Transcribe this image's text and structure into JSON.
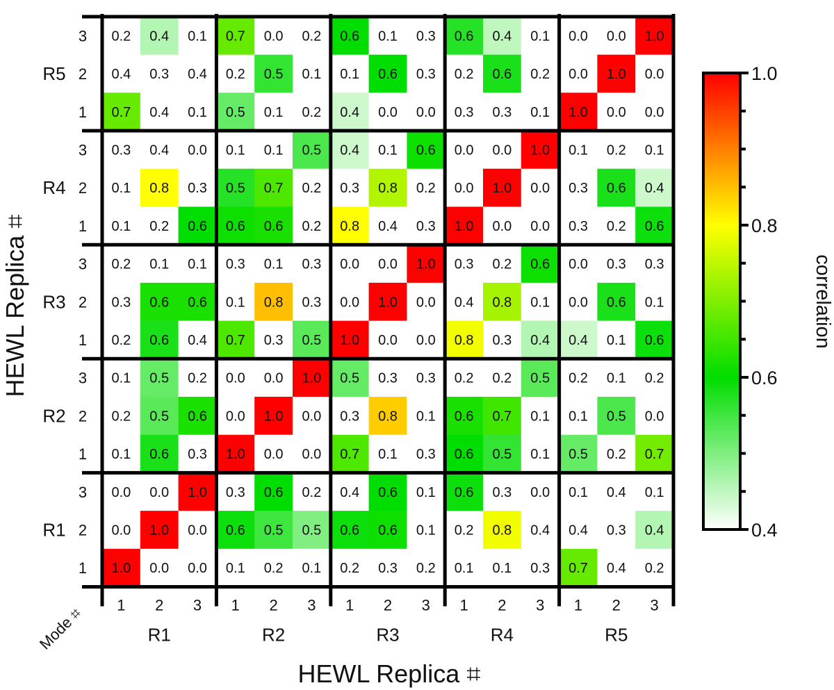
{
  "chart_data": {
    "type": "heatmap",
    "title": "",
    "xlabel": "HEWL Replica ⌗",
    "ylabel": "HEWL Replica ⌗",
    "corner_label": "Mode ⌗",
    "replicas": [
      "R1",
      "R2",
      "R3",
      "R4",
      "R5"
    ],
    "modes": [
      "1",
      "2",
      "3"
    ],
    "colorbar": {
      "label": "correlation",
      "range": [
        0.4,
        1.0
      ],
      "ticks": [
        "0.4",
        "0.6",
        "0.8",
        "1.0"
      ],
      "tick_values": [
        0.4,
        0.6,
        0.8,
        1.0
      ],
      "colors": [
        "#ffffff",
        "#00dd00",
        "#ffff00",
        "#ff0000"
      ]
    },
    "rows_top_to_bottom": [
      {
        "replica": "R5",
        "mode": "3",
        "labels": [
          "0.2",
          "0.4",
          "0.1",
          "0.7",
          "0.0",
          "0.2",
          "0.6",
          "0.1",
          "0.3",
          "0.6",
          "0.4",
          "0.1",
          "0.0",
          "0.0",
          "1.0"
        ]
      },
      {
        "replica": "R5",
        "mode": "2",
        "labels": [
          "0.4",
          "0.3",
          "0.4",
          "0.2",
          "0.5",
          "0.1",
          "0.1",
          "0.6",
          "0.3",
          "0.2",
          "0.6",
          "0.2",
          "0.0",
          "1.0",
          "0.0"
        ]
      },
      {
        "replica": "R5",
        "mode": "1",
        "labels": [
          "0.7",
          "0.4",
          "0.1",
          "0.5",
          "0.1",
          "0.2",
          "0.4",
          "0.0",
          "0.0",
          "0.3",
          "0.3",
          "0.1",
          "1.0",
          "0.0",
          "0.0"
        ]
      },
      {
        "replica": "R4",
        "mode": "3",
        "labels": [
          "0.3",
          "0.4",
          "0.0",
          "0.1",
          "0.1",
          "0.5",
          "0.4",
          "0.1",
          "0.6",
          "0.0",
          "0.0",
          "1.0",
          "0.1",
          "0.2",
          "0.1"
        ]
      },
      {
        "replica": "R4",
        "mode": "2",
        "labels": [
          "0.1",
          "0.8",
          "0.3",
          "0.5",
          "0.7",
          "0.2",
          "0.3",
          "0.8",
          "0.2",
          "0.0",
          "1.0",
          "0.0",
          "0.3",
          "0.6",
          "0.4"
        ]
      },
      {
        "replica": "R4",
        "mode": "1",
        "labels": [
          "0.1",
          "0.2",
          "0.6",
          "0.6",
          "0.6",
          "0.2",
          "0.8",
          "0.4",
          "0.3",
          "1.0",
          "0.0",
          "0.0",
          "0.3",
          "0.2",
          "0.6"
        ]
      },
      {
        "replica": "R3",
        "mode": "3",
        "labels": [
          "0.2",
          "0.1",
          "0.1",
          "0.3",
          "0.1",
          "0.3",
          "0.0",
          "0.0",
          "1.0",
          "0.3",
          "0.2",
          "0.6",
          "0.0",
          "0.3",
          "0.3"
        ]
      },
      {
        "replica": "R3",
        "mode": "2",
        "labels": [
          "0.3",
          "0.6",
          "0.6",
          "0.1",
          "0.8",
          "0.3",
          "0.0",
          "1.0",
          "0.0",
          "0.4",
          "0.8",
          "0.1",
          "0.0",
          "0.6",
          "0.1"
        ]
      },
      {
        "replica": "R3",
        "mode": "1",
        "labels": [
          "0.2",
          "0.6",
          "0.4",
          "0.7",
          "0.3",
          "0.5",
          "1.0",
          "0.0",
          "0.0",
          "0.8",
          "0.3",
          "0.4",
          "0.4",
          "0.1",
          "0.6"
        ]
      },
      {
        "replica": "R2",
        "mode": "3",
        "labels": [
          "0.1",
          "0.5",
          "0.2",
          "0.0",
          "0.0",
          "1.0",
          "0.5",
          "0.3",
          "0.3",
          "0.2",
          "0.2",
          "0.5",
          "0.2",
          "0.1",
          "0.2"
        ]
      },
      {
        "replica": "R2",
        "mode": "2",
        "labels": [
          "0.2",
          "0.5",
          "0.6",
          "0.0",
          "1.0",
          "0.0",
          "0.3",
          "0.8",
          "0.1",
          "0.6",
          "0.7",
          "0.1",
          "0.1",
          "0.5",
          "0.0"
        ]
      },
      {
        "replica": "R2",
        "mode": "1",
        "labels": [
          "0.1",
          "0.6",
          "0.3",
          "1.0",
          "0.0",
          "0.0",
          "0.7",
          "0.1",
          "0.3",
          "0.6",
          "0.5",
          "0.1",
          "0.5",
          "0.2",
          "0.7"
        ]
      },
      {
        "replica": "R1",
        "mode": "3",
        "labels": [
          "0.0",
          "0.0",
          "1.0",
          "0.3",
          "0.6",
          "0.2",
          "0.4",
          "0.6",
          "0.1",
          "0.6",
          "0.3",
          "0.0",
          "0.1",
          "0.4",
          "0.1"
        ]
      },
      {
        "replica": "R1",
        "mode": "2",
        "labels": [
          "0.0",
          "1.0",
          "0.0",
          "0.6",
          "0.5",
          "0.5",
          "0.6",
          "0.6",
          "0.1",
          "0.2",
          "0.8",
          "0.4",
          "0.4",
          "0.3",
          "0.4"
        ]
      },
      {
        "replica": "R1",
        "mode": "1",
        "labels": [
          "1.0",
          "0.0",
          "0.0",
          "0.1",
          "0.2",
          "0.1",
          "0.2",
          "0.3",
          "0.2",
          "0.1",
          "0.1",
          "0.3",
          "0.7",
          "0.4",
          "0.2"
        ]
      }
    ],
    "color_values_top_to_bottom": [
      [
        0.4,
        0.46,
        0.4,
        0.68,
        0.4,
        0.4,
        0.6,
        0.4,
        0.4,
        0.57,
        0.45,
        0.4,
        0.4,
        0.4,
        1.0
      ],
      [
        0.4,
        0.4,
        0.4,
        0.4,
        0.56,
        0.4,
        0.4,
        0.6,
        0.4,
        0.4,
        0.58,
        0.4,
        0.4,
        1.0,
        0.4
      ],
      [
        0.68,
        0.4,
        0.4,
        0.52,
        0.4,
        0.4,
        0.44,
        0.4,
        0.4,
        0.4,
        0.4,
        0.4,
        1.0,
        0.4,
        0.4
      ],
      [
        0.4,
        0.4,
        0.4,
        0.4,
        0.4,
        0.54,
        0.44,
        0.4,
        0.61,
        0.4,
        0.4,
        1.0,
        0.4,
        0.4,
        0.4
      ],
      [
        0.4,
        0.8,
        0.4,
        0.57,
        0.66,
        0.4,
        0.4,
        0.74,
        0.4,
        0.4,
        1.0,
        0.4,
        0.4,
        0.58,
        0.44
      ],
      [
        0.4,
        0.4,
        0.6,
        0.61,
        0.62,
        0.4,
        0.8,
        0.4,
        0.4,
        1.0,
        0.4,
        0.4,
        0.4,
        0.4,
        0.59
      ],
      [
        0.4,
        0.4,
        0.4,
        0.4,
        0.4,
        0.4,
        0.4,
        0.4,
        1.0,
        0.4,
        0.4,
        0.61,
        0.4,
        0.4,
        0.4
      ],
      [
        0.4,
        0.62,
        0.62,
        0.4,
        0.85,
        0.4,
        0.4,
        1.0,
        0.4,
        0.4,
        0.73,
        0.4,
        0.4,
        0.58,
        0.4
      ],
      [
        0.4,
        0.58,
        0.4,
        0.66,
        0.4,
        0.53,
        1.0,
        0.4,
        0.4,
        0.79,
        0.4,
        0.46,
        0.44,
        0.4,
        0.59
      ],
      [
        0.4,
        0.52,
        0.4,
        0.4,
        0.4,
        1.0,
        0.52,
        0.4,
        0.4,
        0.4,
        0.4,
        0.53,
        0.4,
        0.4,
        0.4
      ],
      [
        0.4,
        0.53,
        0.62,
        0.4,
        1.0,
        0.4,
        0.4,
        0.84,
        0.4,
        0.62,
        0.65,
        0.4,
        0.4,
        0.54,
        0.4
      ],
      [
        0.4,
        0.58,
        0.4,
        1.0,
        0.4,
        0.4,
        0.66,
        0.4,
        0.4,
        0.6,
        0.56,
        0.4,
        0.52,
        0.4,
        0.69
      ],
      [
        0.4,
        0.4,
        1.0,
        0.4,
        0.6,
        0.4,
        0.4,
        0.6,
        0.4,
        0.59,
        0.4,
        0.4,
        0.4,
        0.4,
        0.4
      ],
      [
        0.4,
        1.0,
        0.4,
        0.59,
        0.55,
        0.5,
        0.59,
        0.61,
        0.4,
        0.4,
        0.79,
        0.4,
        0.4,
        0.4,
        0.46
      ],
      [
        1.0,
        0.4,
        0.4,
        0.4,
        0.4,
        0.4,
        0.4,
        0.4,
        0.4,
        0.4,
        0.4,
        0.4,
        0.68,
        0.4,
        0.4
      ]
    ]
  }
}
